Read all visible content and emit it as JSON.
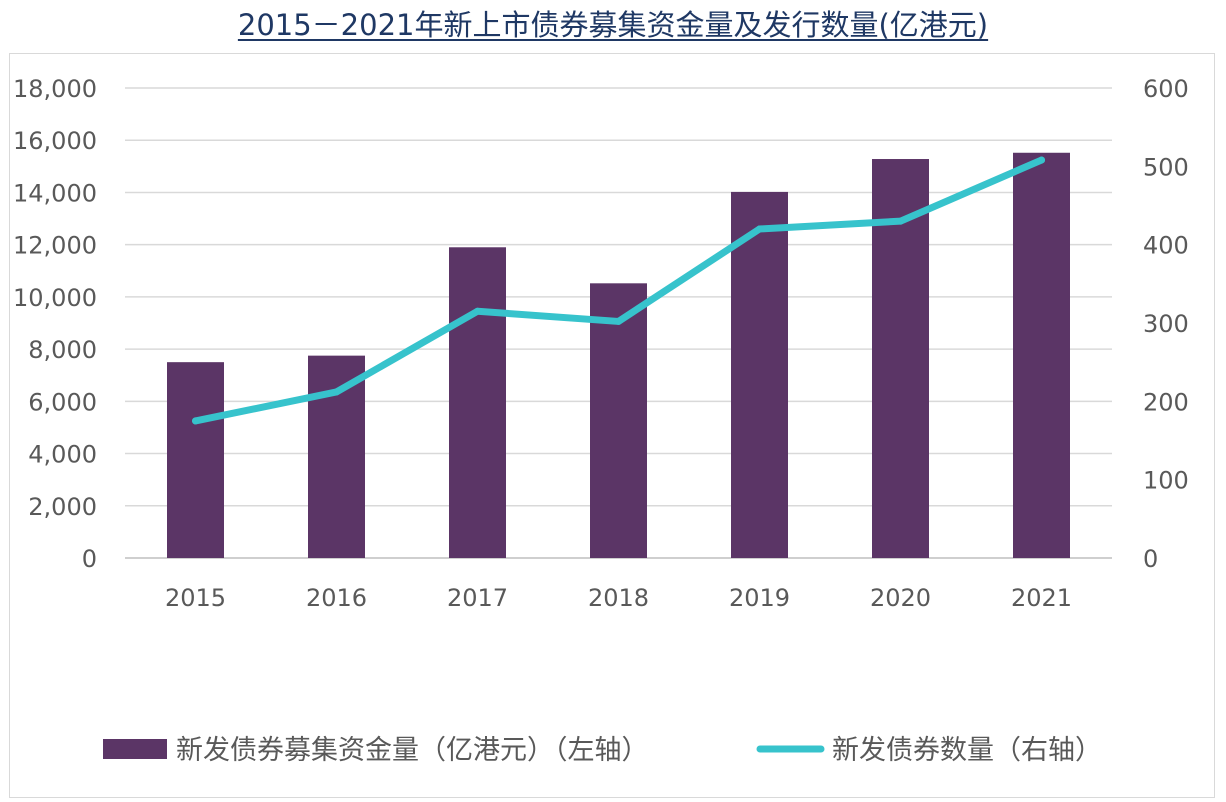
{
  "chart_data": {
    "type": "bar",
    "title": "2015－2021年新上市债券募集资金量及发行数量(亿港元)",
    "categories": [
      "2015",
      "2016",
      "2017",
      "2018",
      "2019",
      "2020",
      "2021"
    ],
    "series": [
      {
        "name": "新发债券募集资金量（亿港元）（左轴）",
        "type": "bar",
        "axis": "left",
        "color": "#5b3566",
        "values": [
          7500,
          7750,
          11900,
          10520,
          14020,
          15280,
          15520
        ]
      },
      {
        "name": "新发债券数量（右轴）",
        "type": "line",
        "axis": "right",
        "color": "#37c3cc",
        "values": [
          175,
          212,
          315,
          302,
          420,
          430,
          508
        ]
      }
    ],
    "y_left": {
      "min": 0,
      "max": 18000,
      "ticks": [
        "0",
        "2,000",
        "4,000",
        "6,000",
        "8,000",
        "10,000",
        "12,000",
        "14,000",
        "16,000",
        "18,000"
      ]
    },
    "y_right": {
      "min": 0,
      "max": 600,
      "ticks": [
        "0",
        "100",
        "200",
        "300",
        "400",
        "500",
        "600"
      ]
    },
    "grid": true,
    "legend_position": "bottom"
  }
}
